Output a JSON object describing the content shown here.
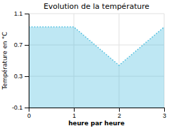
{
  "chart_data": {
    "type": "area",
    "title": "Evolution de la température",
    "xlabel": "heure par heure",
    "ylabel": "Température en °C",
    "x": [
      0,
      1,
      2,
      3
    ],
    "values": [
      0.93,
      0.93,
      0.44,
      0.93
    ],
    "xlim": [
      0,
      3
    ],
    "ylim": [
      -0.1,
      1.1
    ],
    "xticks": [
      0,
      1,
      2,
      3
    ],
    "yticks": [
      -0.1,
      0.3,
      0.7,
      1.1
    ],
    "grid": true,
    "line_style": "dotted",
    "color": "#44bbdd"
  }
}
